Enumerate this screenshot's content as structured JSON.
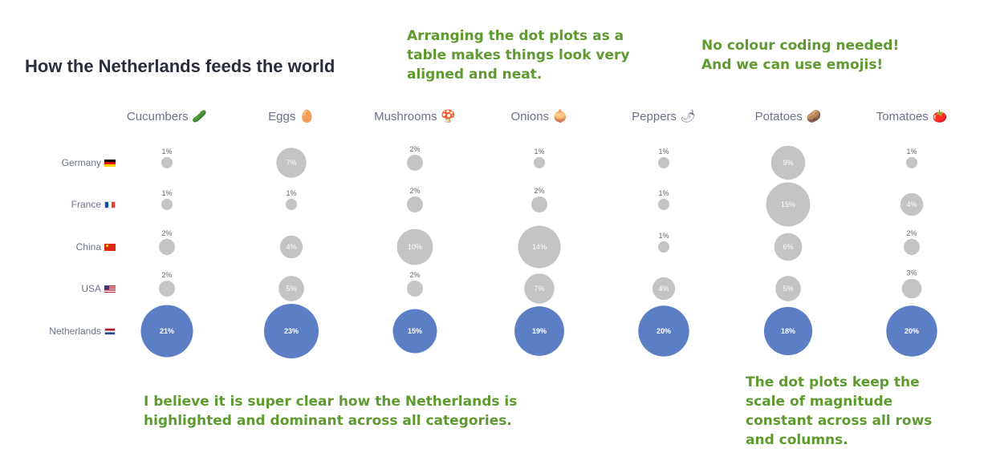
{
  "title": "How the Netherlands feeds the world",
  "notes": {
    "aligned": "Arranging the dot plots as a\ntable makes things look very\naligned and neat.",
    "emoji": "No colour coding needed!\nAnd we can use emojis!",
    "highlight": "I believe it is super clear how the Netherlands is\nhighlighted and dominant across all categories.",
    "scale": "The dot plots keep the\nscale of magnitude\nconstant across all rows\nand columns."
  },
  "colors": {
    "default_dot": "#c4c4c4",
    "highlight_dot": "#5b7ec4",
    "annotation": "#5e9a2f"
  },
  "chart_data": {
    "type": "dot-matrix",
    "columns": [
      {
        "label": "Cucumbers",
        "emoji": "🥒"
      },
      {
        "label": "Eggs",
        "emoji": "🥚"
      },
      {
        "label": "Mushrooms",
        "emoji": "🍄"
      },
      {
        "label": "Onions",
        "emoji": "🧅"
      },
      {
        "label": "Peppers",
        "emoji": "🌶"
      },
      {
        "label": "Potatoes",
        "emoji": "🥔"
      },
      {
        "label": "Tomatoes",
        "emoji": "🍅"
      }
    ],
    "rows": [
      {
        "label": "Germany",
        "flag": "flag-de",
        "values": [
          1,
          7,
          2,
          1,
          1,
          9,
          1
        ]
      },
      {
        "label": "France",
        "flag": "flag-fr",
        "values": [
          1,
          1,
          2,
          2,
          1,
          15,
          4
        ]
      },
      {
        "label": "China",
        "flag": "flag-cn",
        "values": [
          2,
          4,
          10,
          14,
          1,
          6,
          2
        ]
      },
      {
        "label": "USA",
        "flag": "flag-us",
        "values": [
          2,
          5,
          2,
          7,
          4,
          5,
          3
        ]
      },
      {
        "label": "Netherlands",
        "flag": "flag-nl",
        "highlight": true,
        "values": [
          21,
          23,
          15,
          19,
          20,
          18,
          20
        ]
      }
    ],
    "value_suffix": "%"
  }
}
